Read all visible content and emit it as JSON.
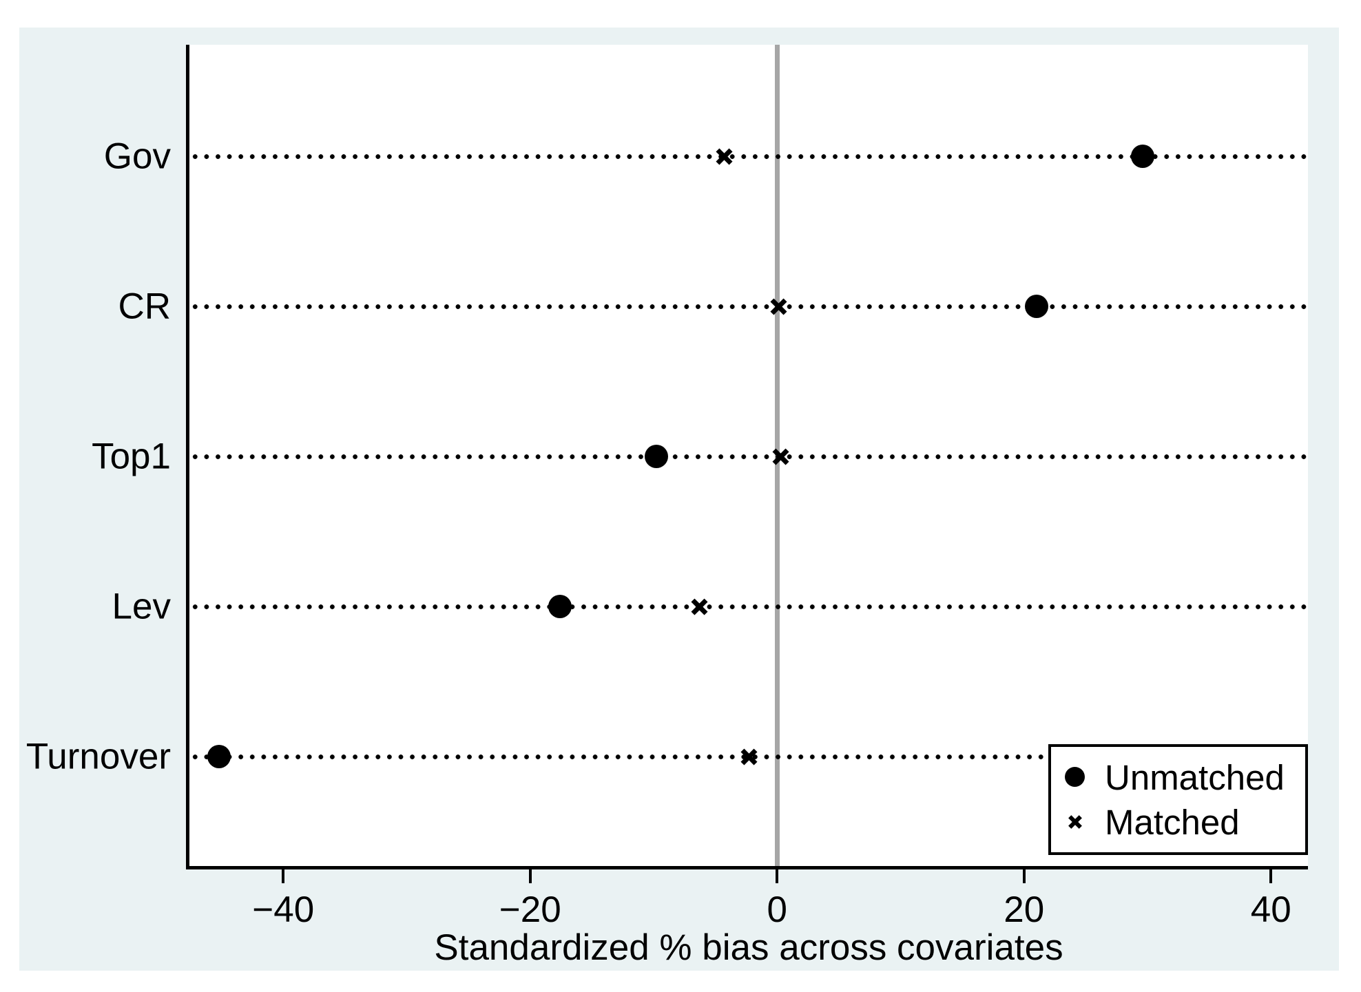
{
  "figure": {
    "canvas_background": "#EAF2F3",
    "plot_background": "#FFFFFF",
    "axis_color": "#000000",
    "zero_line_color": "#A6A6A6",
    "marker_color": "#000000"
  },
  "chart_data": {
    "type": "scatter",
    "subtype": "horizontal-dot-plot (covariate balance plot)",
    "title": "",
    "xlabel": "Standardized % bias across covariates",
    "ylabel": "",
    "categories": [
      "Gov",
      "CR",
      "Top1",
      "Lev",
      "Turnover"
    ],
    "series": [
      {
        "name": "Unmatched",
        "marker": "circle",
        "values": [
          29.6,
          21.0,
          -9.8,
          -17.6,
          -45.2
        ]
      },
      {
        "name": "Matched",
        "marker": "x",
        "values": [
          -4.3,
          0.1,
          0.3,
          -6.3,
          -2.3
        ]
      }
    ],
    "x_ticks": [
      -40,
      -20,
      0,
      20,
      40
    ],
    "x_tick_labels": [
      "−40",
      "−20",
      "0",
      "20",
      "40"
    ],
    "x_range": [
      -47.6,
      43.0
    ],
    "zero_line": 0,
    "grid": "dotted horizontal line per category",
    "legend_position": "inside bottom-right"
  },
  "legend": {
    "items": [
      {
        "label": "Unmatched",
        "marker": "circle"
      },
      {
        "label": "Matched",
        "marker": "x"
      }
    ]
  }
}
